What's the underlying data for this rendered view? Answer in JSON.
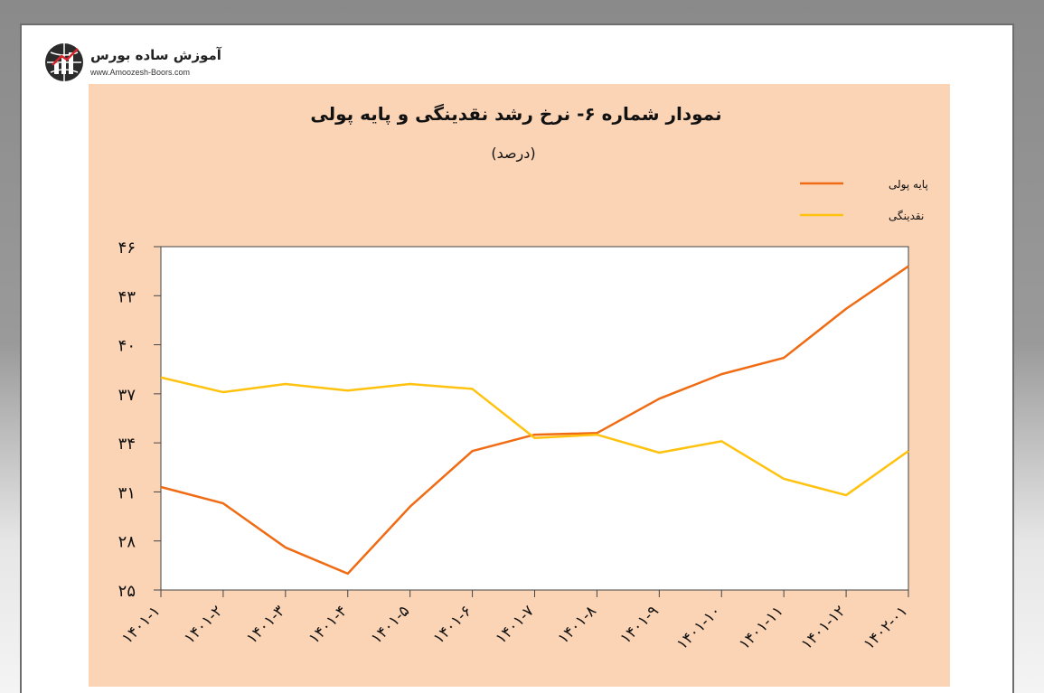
{
  "logo": {
    "brand_text": "آموزش ساده بورس",
    "url_text": "www.Amoozesh-Boors.com"
  },
  "chart_data": {
    "type": "line",
    "title": "نمودار شماره ۶- نرخ رشد نقدینگی و پایه پولی",
    "subtitle": "(درصد)",
    "xlabel": "",
    "ylabel": "",
    "categories": [
      "۱۴۰۱-۱",
      "۱۴۰۱-۲",
      "۱۴۰۱-۳",
      "۱۴۰۱-۴",
      "۱۴۰۱-۵",
      "۱۴۰۱-۶",
      "۱۴۰۱-۷",
      "۱۴۰۱-۸",
      "۱۴۰۱-۹",
      "۱۴۰۱-۱۰",
      "۱۴۰۱-۱۱",
      "۱۴۰۱-۱۲",
      "۱۴۰۲-۰۱"
    ],
    "yticks": [
      "۲۵",
      "۲۸",
      "۳۱",
      "۳۴",
      "۳۷",
      "۴۰",
      "۴۳",
      "۴۶"
    ],
    "ylim": [
      25,
      46
    ],
    "grid": false,
    "legend_position": "top-right",
    "series": [
      {
        "name": "پایه پولی",
        "color": "#ef6c14",
        "values": [
          31.3,
          30.3,
          27.6,
          26.0,
          30.1,
          33.5,
          34.5,
          34.6,
          36.7,
          38.2,
          39.2,
          42.2,
          44.8
        ]
      },
      {
        "name": "نقدینگی",
        "color": "#ffc20e",
        "values": [
          38.0,
          37.1,
          37.6,
          37.2,
          37.6,
          37.3,
          34.3,
          34.5,
          33.4,
          34.1,
          31.8,
          30.8,
          33.5
        ]
      }
    ]
  }
}
